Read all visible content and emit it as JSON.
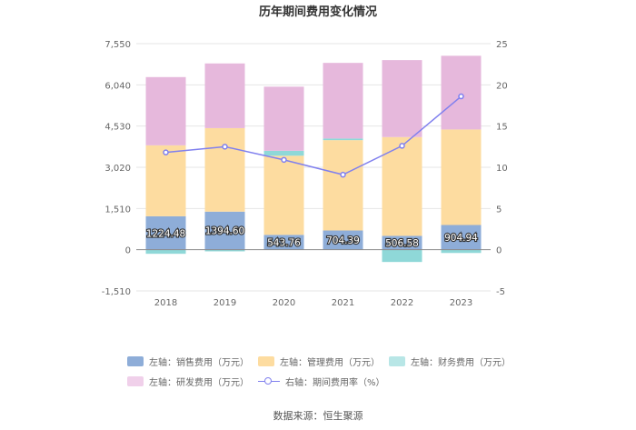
{
  "chart_data": {
    "type": "bar",
    "stacked": true,
    "title": "历年期间费用变化情况",
    "categories": [
      "2018",
      "2019",
      "2020",
      "2021",
      "2022",
      "2023"
    ],
    "left_axis": {
      "min": -1510,
      "max": 7550,
      "ticks": [
        "-1,510",
        "0",
        "1,510",
        "3,020",
        "4,530",
        "6,040",
        "7,550"
      ],
      "tick_values": [
        -1510,
        0,
        1510,
        3020,
        4530,
        6040,
        7550
      ]
    },
    "right_axis": {
      "min": -5,
      "max": 25,
      "ticks": [
        "-5",
        "0",
        "5",
        "10",
        "15",
        "20",
        "25"
      ],
      "tick_values": [
        -5,
        0,
        5,
        10,
        15,
        20,
        25
      ]
    },
    "series": [
      {
        "name": "左轴：销售费用（万元）",
        "color": "#8eadd8",
        "values": [
          1224.48,
          1394.6,
          543.76,
          704.39,
          506.58,
          904.94
        ],
        "labels": [
          "1224.48",
          "1394.60",
          "543.76",
          "704.39",
          "506.58",
          "904.94"
        ]
      },
      {
        "name": "左轴：管理费用（万元）",
        "color": "#fddca0",
        "values": [
          2600,
          3060,
          2900,
          3310,
          3620,
          3500
        ]
      },
      {
        "name": "左轴：财务费用（万元）",
        "color": "#8fd8d8",
        "values": [
          -150,
          -60,
          180,
          60,
          -450,
          -120
        ]
      },
      {
        "name": "左轴：研发费用（万元）",
        "color": "#e6b8dc",
        "values": [
          2500,
          2370,
          2350,
          2770,
          2820,
          2700
        ]
      }
    ],
    "line": {
      "name": "右轴：期间费用率（%）",
      "color": "#8080ee",
      "values": [
        11.8,
        12.5,
        10.9,
        9.1,
        12.6,
        18.6
      ]
    }
  },
  "legend": {
    "items": [
      "左轴：销售费用（万元）",
      "左轴：管理费用（万元）",
      "左轴：财务费用（万元）",
      "左轴：研发费用（万元）",
      "右轴：期间费用率（%）"
    ]
  },
  "source": "数据来源：恒生聚源"
}
